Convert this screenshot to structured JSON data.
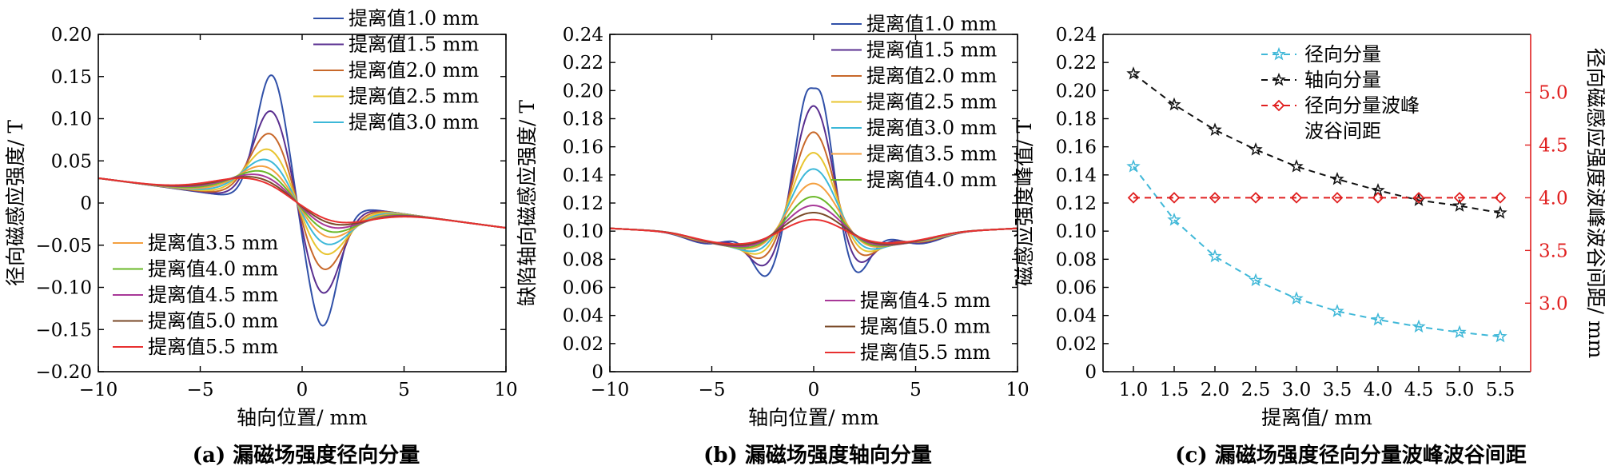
{
  "panels": [
    {
      "caption": "(a) 漏磁场强度径向分量",
      "chart_data": {
        "type": "line",
        "xlabel": "轴向位置/ mm",
        "ylabel": "径向磁感应强度/ T",
        "xlim": [
          -10,
          10
        ],
        "ylim": [
          -0.2,
          0.2
        ],
        "xticks": [
          -10,
          -5,
          0,
          5,
          10
        ],
        "yticks": [
          -0.2,
          -0.15,
          -0.1,
          -0.05,
          0,
          0.05,
          0.1,
          0.15,
          0.2
        ],
        "ytick_labels": [
          "−0.20",
          "−0.15",
          "−0.10",
          "−0.05",
          "0",
          "0.05",
          "0.10",
          "0.15",
          "0.20"
        ],
        "xtick_labels": [
          "−10",
          "−5",
          "0",
          "5",
          "10"
        ],
        "legend_upper": [
          "提离值1.0 mm",
          "提离值1.5 mm",
          "提离值2.0 mm",
          "提离值2.5 mm",
          "提离值3.0 mm"
        ],
        "legend_lower": [
          "提离值3.5 mm",
          "提离值4.0 mm",
          "提离值4.5 mm",
          "提离值5.0 mm",
          "提离值5.5 mm"
        ],
        "series": [
          {
            "name": "提离值1.0 mm",
            "color": "#3050a8",
            "peak": 0.15,
            "valley": -0.145
          },
          {
            "name": "提离值1.5 mm",
            "color": "#5a2f90",
            "peak": 0.108,
            "valley": -0.107
          },
          {
            "name": "提离值2.0 mm",
            "color": "#c8682a",
            "peak": 0.082,
            "valley": -0.08
          },
          {
            "name": "提离值2.5 mm",
            "color": "#e8c530",
            "peak": 0.064,
            "valley": -0.063
          },
          {
            "name": "提离值3.0 mm",
            "color": "#3cb8d8",
            "peak": 0.052,
            "valley": -0.052
          },
          {
            "name": "提离值3.5 mm",
            "color": "#f4a040",
            "peak": 0.044,
            "valley": -0.044
          },
          {
            "name": "提离值4.0 mm",
            "color": "#6ab828",
            "peak": 0.038,
            "valley": -0.038
          },
          {
            "name": "提离值4.5 mm",
            "color": "#a83898",
            "peak": 0.033,
            "valley": -0.033
          },
          {
            "name": "提离值5.0 mm",
            "color": "#7a4a28",
            "peak": 0.029,
            "valley": -0.029
          },
          {
            "name": "提离值5.5 mm",
            "color": "#e83030",
            "peak": 0.026,
            "valley": -0.026
          }
        ]
      }
    },
    {
      "caption": "(b) 漏磁场强度轴向分量",
      "chart_data": {
        "type": "line",
        "xlabel": "轴向位置/ mm",
        "ylabel": "缺陷轴向磁感应强度/ T",
        "xlim": [
          -10,
          10
        ],
        "ylim": [
          0,
          0.24
        ],
        "xticks": [
          -10,
          -5,
          0,
          5,
          10
        ],
        "xtick_labels": [
          "−10",
          "−5",
          "0",
          "5",
          "10"
        ],
        "yticks": [
          0,
          0.02,
          0.04,
          0.06,
          0.08,
          0.1,
          0.12,
          0.14,
          0.16,
          0.18,
          0.2,
          0.22,
          0.24
        ],
        "ytick_labels": [
          "0",
          "0.02",
          "0.04",
          "0.06",
          "0.08",
          "0.10",
          "0.12",
          "0.14",
          "0.16",
          "0.18",
          "0.20",
          "0.22",
          "0.24"
        ],
        "legend_upper": [
          "提离值1.0 mm",
          "提离值1.5 mm",
          "提离值2.0 mm",
          "提离值2.5 mm",
          "提离值3.0 mm",
          "提离值3.5 mm",
          "提离值4.0 mm"
        ],
        "legend_lower": [
          "提离值4.5 mm",
          "提离值5.0 mm",
          "提离值5.5 mm"
        ],
        "series": [
          {
            "name": "提离值1.0 mm",
            "color": "#3050a8",
            "peak": 0.214,
            "dip": 0.066
          },
          {
            "name": "提离值1.5 mm",
            "color": "#5a2f90",
            "peak": 0.19,
            "dip": 0.073
          },
          {
            "name": "提离值2.0 mm",
            "color": "#c8682a",
            "peak": 0.172,
            "dip": 0.078
          },
          {
            "name": "提离值2.5 mm",
            "color": "#e8c530",
            "peak": 0.158,
            "dip": 0.081
          },
          {
            "name": "提离值3.0 mm",
            "color": "#3cb8d8",
            "peak": 0.147,
            "dip": 0.083
          },
          {
            "name": "提离值3.5 mm",
            "color": "#f4a040",
            "peak": 0.137,
            "dip": 0.085
          },
          {
            "name": "提离值4.0 mm",
            "color": "#6ab828",
            "peak": 0.128,
            "dip": 0.086
          },
          {
            "name": "提离值4.5 mm",
            "color": "#a83898",
            "peak": 0.122,
            "dip": 0.087
          },
          {
            "name": "提离值5.0 mm",
            "color": "#7a4a28",
            "peak": 0.117,
            "dip": 0.088
          },
          {
            "name": "提离值5.5 mm",
            "color": "#e83030",
            "peak": 0.112,
            "dip": 0.089
          }
        ]
      }
    },
    {
      "caption": "(c) 漏磁场强度径向分量波峰波谷间距",
      "chart_data": {
        "type": "line",
        "xlabel": "提离值/ mm",
        "ylabel": "磁感应强度峰值/ T",
        "ylabel_right": "径向磁感应强度波峰波谷间距/ mm",
        "x": [
          1.0,
          1.5,
          2.0,
          2.5,
          3.0,
          3.5,
          4.0,
          4.5,
          5.0,
          5.5
        ],
        "xtick_labels": [
          "1.0",
          "1.5",
          "2.0",
          "2.5",
          "3.0",
          "3.5",
          "4.0",
          "4.5",
          "5.0",
          "5.5"
        ],
        "ylim": [
          0,
          0.24
        ],
        "yticks": [
          0,
          0.02,
          0.04,
          0.06,
          0.08,
          0.1,
          0.12,
          0.14,
          0.16,
          0.18,
          0.2,
          0.22,
          0.24
        ],
        "ytick_labels": [
          "0",
          "0.02",
          "0.04",
          "0.06",
          "0.08",
          "0.10",
          "0.12",
          "0.14",
          "0.16",
          "0.18",
          "0.20",
          "0.22",
          "0.24"
        ],
        "ylim_right": [
          2.35,
          5.55
        ],
        "yticks_right": [
          3.0,
          3.5,
          4.0,
          4.5,
          5.0
        ],
        "ytick_labels_right": [
          "3.0",
          "3.5",
          "4.0",
          "4.5",
          "5.0"
        ],
        "series": [
          {
            "name": "径向分量",
            "color": "#40b8d8",
            "marker": "star",
            "dash": true,
            "axis": "left",
            "values": [
              0.146,
              0.108,
              0.082,
              0.065,
              0.052,
              0.043,
              0.037,
              0.032,
              0.028,
              0.025
            ]
          },
          {
            "name": "轴向分量",
            "color": "#111111",
            "marker": "star",
            "dash": true,
            "axis": "left",
            "values": [
              0.212,
              0.19,
              0.172,
              0.158,
              0.146,
              0.137,
              0.129,
              0.122,
              0.118,
              0.113
            ]
          },
          {
            "name": "径向分量波峰波谷间距",
            "legend_lines": [
              "径向分量波峰",
              "波谷间距"
            ],
            "color": "#e02020",
            "marker": "diamond",
            "dash": true,
            "axis": "right",
            "values": [
              4.0,
              4.0,
              4.0,
              4.0,
              4.0,
              4.0,
              4.0,
              4.0,
              4.0,
              4.0
            ]
          }
        ]
      }
    }
  ]
}
